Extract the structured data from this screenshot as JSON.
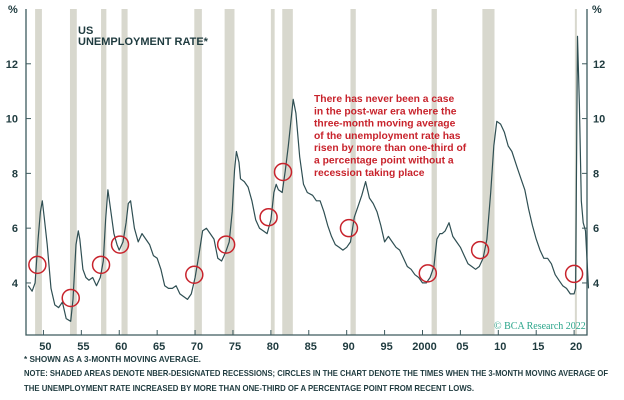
{
  "chart_data": {
    "type": "line",
    "title": "US UNEMPLOYMENT RATE*",
    "title_lines": [
      "US",
      "UNEMPLOYMENT RATE*"
    ],
    "ylabel": "%",
    "xlim": [
      1947.7,
      2021.7
    ],
    "ylim": [
      2.1,
      14.0
    ],
    "y_ticks": [
      4,
      6,
      8,
      10,
      12
    ],
    "x_ticks": [
      1950,
      1955,
      1960,
      1965,
      1970,
      1975,
      1980,
      1985,
      1990,
      1995,
      2000,
      2005,
      2010,
      2015,
      2020
    ],
    "x_tick_labels": [
      "50",
      "55",
      "60",
      "65",
      "70",
      "75",
      "80",
      "85",
      "90",
      "95",
      "2000",
      "05",
      "10",
      "15",
      "20"
    ],
    "colors": {
      "line": "#2f4f53",
      "recession": "#d8d8ce",
      "circle": "#c8232c",
      "axis": "#3d5a5e"
    },
    "series": [
      {
        "name": "US unemployment rate (3-month moving average)",
        "x": [
          1948.0,
          1948.5,
          1948.9,
          1949.3,
          1949.6,
          1949.85,
          1950.1,
          1950.5,
          1951.0,
          1951.5,
          1952.0,
          1952.5,
          1953.0,
          1953.6,
          1953.9,
          1954.3,
          1954.6,
          1954.8,
          1955.2,
          1955.6,
          1956.0,
          1956.5,
          1957.0,
          1957.5,
          1957.9,
          1958.2,
          1958.5,
          1958.9,
          1959.3,
          1959.7,
          1960.0,
          1960.5,
          1960.9,
          1961.2,
          1961.5,
          1962.0,
          1962.5,
          1963.0,
          1963.5,
          1964.0,
          1964.5,
          1965.0,
          1965.5,
          1966.0,
          1966.5,
          1967.0,
          1967.5,
          1968.0,
          1968.5,
          1969.0,
          1969.5,
          1970.0,
          1970.5,
          1971.0,
          1971.5,
          1972.0,
          1972.5,
          1973.0,
          1973.5,
          1974.0,
          1974.5,
          1974.9,
          1975.2,
          1975.45,
          1975.8,
          1976.0,
          1976.5,
          1977.0,
          1977.5,
          1978.0,
          1978.5,
          1979.0,
          1979.5,
          1980.0,
          1980.4,
          1980.7,
          1981.0,
          1981.5,
          1981.9,
          1982.3,
          1982.6,
          1982.95,
          1983.3,
          1983.8,
          1984.3,
          1984.8,
          1985.5,
          1986.0,
          1986.5,
          1987.0,
          1987.5,
          1988.0,
          1988.5,
          1989.0,
          1989.5,
          1990.0,
          1990.5,
          1991.0,
          1991.5,
          1992.0,
          1992.5,
          1993.0,
          1993.5,
          1994.0,
          1994.5,
          1995.0,
          1995.5,
          1996.0,
          1996.5,
          1997.0,
          1997.5,
          1998.0,
          1998.5,
          1999.0,
          1999.5,
          2000.0,
          2000.5,
          2001.0,
          2001.5,
          2001.9,
          2002.3,
          2002.6,
          2003.0,
          2003.5,
          2004.0,
          2004.5,
          2005.0,
          2005.5,
          2006.0,
          2006.5,
          2007.0,
          2007.5,
          2008.0,
          2008.5,
          2009.0,
          2009.4,
          2009.8,
          2010.3,
          2010.8,
          2011.3,
          2011.8,
          2012.5,
          2013.0,
          2013.5,
          2014.0,
          2014.5,
          2015.0,
          2015.5,
          2016.0,
          2016.5,
          2017.0,
          2017.5,
          2018.0,
          2018.5,
          2019.0,
          2019.5,
          2020.0,
          2020.2,
          2020.45,
          2020.7,
          2020.95,
          2021.2,
          2021.5,
          2021.9
        ],
        "y": [
          3.9,
          3.7,
          4.0,
          5.6,
          6.6,
          7.0,
          6.4,
          5.4,
          3.8,
          3.2,
          3.1,
          3.3,
          2.7,
          2.6,
          3.4,
          5.4,
          5.9,
          5.6,
          4.5,
          4.2,
          4.1,
          4.2,
          3.9,
          4.2,
          4.8,
          6.3,
          7.4,
          6.6,
          5.8,
          5.4,
          5.2,
          5.5,
          6.2,
          6.9,
          7.0,
          6.0,
          5.5,
          5.8,
          5.6,
          5.4,
          5.0,
          4.9,
          4.5,
          3.9,
          3.8,
          3.8,
          3.9,
          3.6,
          3.5,
          3.4,
          3.6,
          4.2,
          5.0,
          5.9,
          6.0,
          5.8,
          5.6,
          4.9,
          4.8,
          5.1,
          5.5,
          6.6,
          8.1,
          8.8,
          8.4,
          7.8,
          7.7,
          7.5,
          7.0,
          6.3,
          6.0,
          5.9,
          5.8,
          6.3,
          7.3,
          7.6,
          7.4,
          7.3,
          8.1,
          9.0,
          9.8,
          10.7,
          10.2,
          8.6,
          7.6,
          7.3,
          7.2,
          7.0,
          7.0,
          6.6,
          6.1,
          5.7,
          5.4,
          5.3,
          5.2,
          5.3,
          5.5,
          6.4,
          6.8,
          7.2,
          7.7,
          7.1,
          6.9,
          6.6,
          6.1,
          5.5,
          5.7,
          5.5,
          5.3,
          5.2,
          4.9,
          4.6,
          4.5,
          4.3,
          4.2,
          4.0,
          4.0,
          4.2,
          4.6,
          5.6,
          5.8,
          5.8,
          5.9,
          6.2,
          5.7,
          5.5,
          5.3,
          5.0,
          4.7,
          4.6,
          4.5,
          4.6,
          4.9,
          5.6,
          7.3,
          9.0,
          9.9,
          9.8,
          9.5,
          9.0,
          8.8,
          8.2,
          7.8,
          7.4,
          6.7,
          6.1,
          5.6,
          5.2,
          4.9,
          4.9,
          4.7,
          4.3,
          4.1,
          3.9,
          3.8,
          3.6,
          3.6,
          3.8,
          13.0,
          10.5,
          7.0,
          6.2,
          5.9,
          3.8
        ]
      }
    ],
    "recessions": [
      [
        1948.9,
        1949.8
      ],
      [
        1953.5,
        1954.4
      ],
      [
        1957.6,
        1958.3
      ],
      [
        1960.3,
        1961.1
      ],
      [
        1969.9,
        1970.9
      ],
      [
        1973.9,
        1975.2
      ],
      [
        1980.0,
        1980.5
      ],
      [
        1981.5,
        1982.9
      ],
      [
        1990.5,
        1991.2
      ],
      [
        2001.2,
        2001.9
      ],
      [
        2007.9,
        2009.5
      ],
      [
        2020.1,
        2020.3
      ]
    ],
    "circles": [
      [
        1949.2,
        4.66
      ],
      [
        1953.6,
        3.45
      ],
      [
        1957.6,
        4.66
      ],
      [
        1960.1,
        5.4
      ],
      [
        1969.9,
        4.3
      ],
      [
        1974.1,
        5.4
      ],
      [
        1979.7,
        6.4
      ],
      [
        1981.6,
        8.05
      ],
      [
        1990.3,
        6.0
      ],
      [
        2000.7,
        4.35
      ],
      [
        2007.6,
        5.2
      ],
      [
        2020.0,
        4.33
      ]
    ],
    "annotation_lines": [
      "There has never been a case",
      "in the post-war era where the",
      "three-month moving average",
      "of the unemployment rate has",
      "risen by more than one-third of",
      "a percentage point without a",
      "recession taking place"
    ],
    "copyright": "© BCA Research 2022"
  },
  "footnotes": {
    "asterisk": "* SHOWN AS A 3-MONTH MOVING AVERAGE.",
    "note_line1": "NOTE: SHADED AREAS DENOTE NBER-DESIGNATED RECESSIONS; CIRCLES IN THE CHART DENOTE THE TIMES WHEN THE 3-MONTH MOVING AVERAGE OF",
    "note_line2": "THE UNEMPLOYMENT RATE INCREASED BY MORE THAN ONE-THIRD OF A PERCENTAGE POINT FROM RECENT LOWS."
  }
}
